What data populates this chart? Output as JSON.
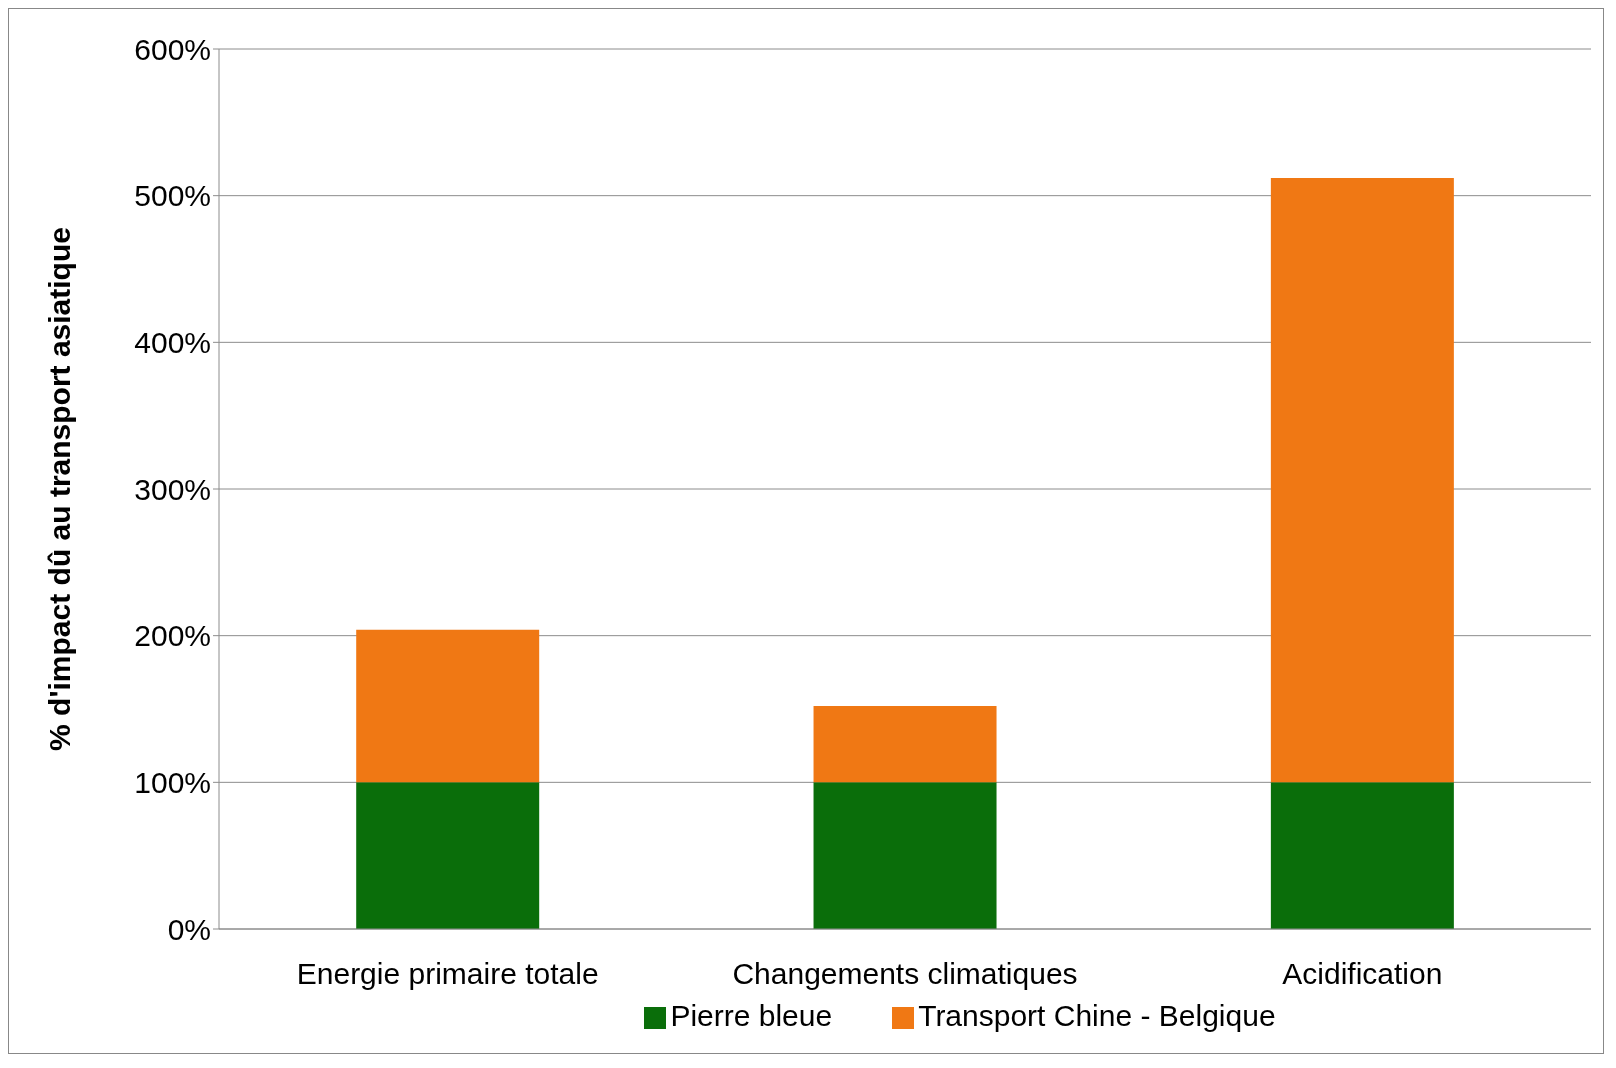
{
  "chart_data": {
    "type": "bar",
    "stacked": true,
    "ylabel": "% d'impact dû au transport asiatique",
    "categories": [
      "Energie primaire totale",
      "Changements climatiques",
      "Acidification"
    ],
    "series": [
      {
        "name": "Pierre bleue",
        "color": "#0a6e0a",
        "values": [
          100,
          100,
          100
        ]
      },
      {
        "name": "Transport Chine - Belgique",
        "color": "#f07814",
        "values": [
          104,
          52,
          412
        ]
      }
    ],
    "ylim": [
      0,
      600
    ],
    "yticks": [
      {
        "value": 0,
        "label": "0%"
      },
      {
        "value": 100,
        "label": "100%"
      },
      {
        "value": 200,
        "label": "200%"
      },
      {
        "value": 300,
        "label": "300%"
      },
      {
        "value": 400,
        "label": "400%"
      },
      {
        "value": 500,
        "label": "500%"
      },
      {
        "value": 600,
        "label": "600%"
      }
    ],
    "grid": "y",
    "legend": "bottom"
  }
}
